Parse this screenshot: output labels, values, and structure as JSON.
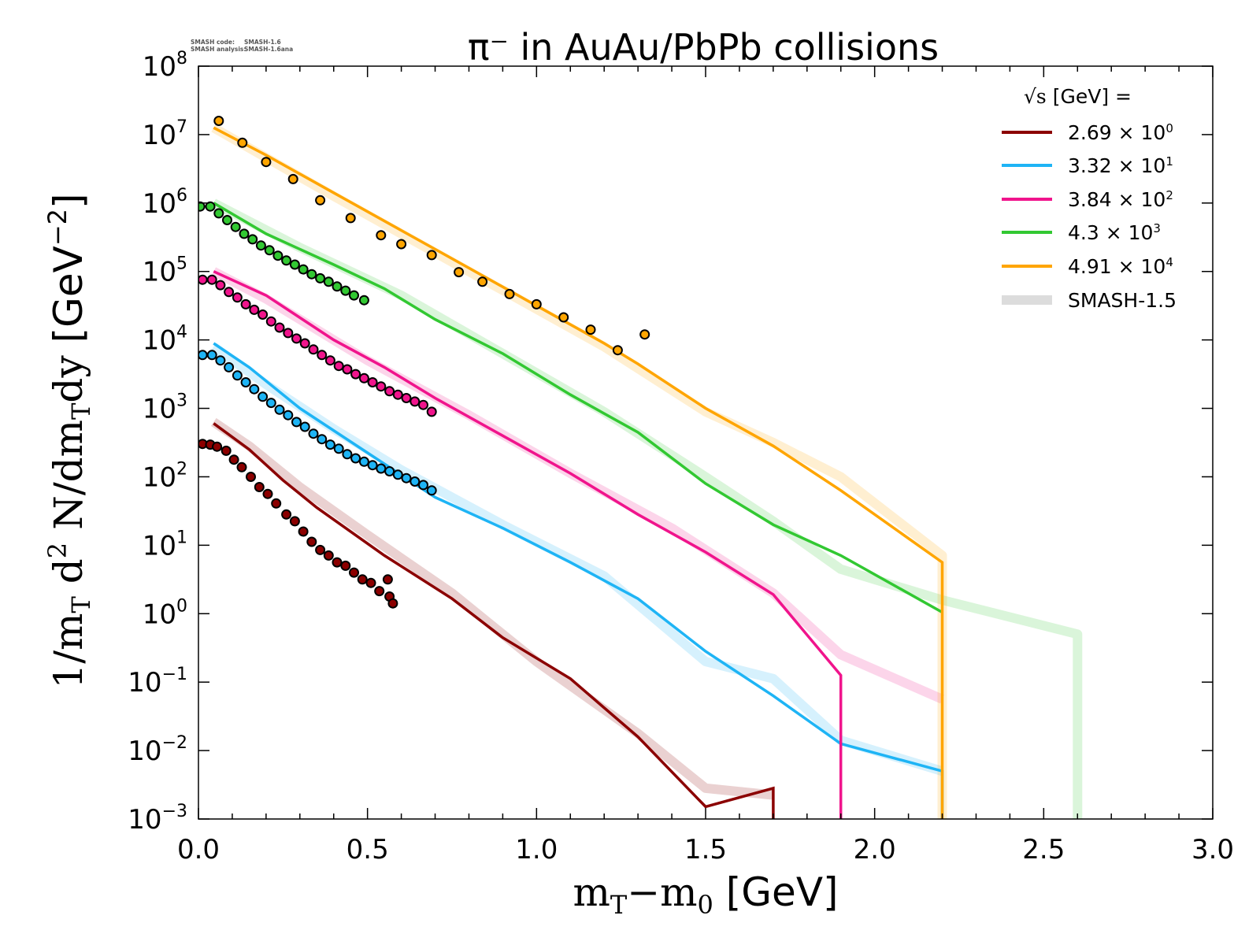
{
  "chart_data": {
    "type": "line",
    "title": "π⁻ in AuAu/PbPb collisions",
    "credits": [
      {
        "label": "SMASH code:",
        "value": "SMASH-1.6"
      },
      {
        "label": "SMASH analysis:",
        "value": "SMASH-1.6ana"
      }
    ],
    "xlabel": {
      "pre": "m",
      "sub1": "T",
      "mid": "−m",
      "sub2": "0",
      "unit": " [GeV]"
    },
    "ylabel": {
      "pre": "1/m",
      "sub1": "T",
      "d": " d",
      "sup": "2",
      "rest": " N/dm",
      "sub2": "T",
      "rest2": "dy",
      "unit": " [GeV",
      "unitsup": "−2",
      "close": "]"
    },
    "xlim": [
      0.0,
      3.0
    ],
    "ylim_log10": [
      -3,
      8
    ],
    "yscale": "log",
    "grid": false,
    "x_ticks": [
      "0.0",
      "0.5",
      "1.0",
      "1.5",
      "2.0",
      "2.5",
      "3.0"
    ],
    "y_ticks": [
      {
        "base": "10",
        "exp": "8"
      },
      {
        "base": "10",
        "exp": "7"
      },
      {
        "base": "10",
        "exp": "6"
      },
      {
        "base": "10",
        "exp": "5"
      },
      {
        "base": "10",
        "exp": "4"
      },
      {
        "base": "10",
        "exp": "3"
      },
      {
        "base": "10",
        "exp": "2"
      },
      {
        "base": "10",
        "exp": "1"
      },
      {
        "base": "10",
        "exp": "0"
      },
      {
        "base": "10",
        "exp": "−1"
      },
      {
        "base": "10",
        "exp": "−2"
      },
      {
        "base": "10",
        "exp": "−3"
      }
    ],
    "legend": {
      "placement": "top-right",
      "title": {
        "sqrt": "√s",
        "rest": " [GeV] ="
      },
      "entries": [
        {
          "mant": "2.69",
          "times": " × ",
          "base": "10",
          "exp": "0",
          "color": "#8b0000"
        },
        {
          "mant": "3.32",
          "times": " × ",
          "base": "10",
          "exp": "1",
          "color": "#1eb4f5"
        },
        {
          "mant": "3.84",
          "times": " × ",
          "base": "10",
          "exp": "2",
          "color": "#f0148c"
        },
        {
          "mant": "4.3",
          "times": " × ",
          "base": "10",
          "exp": "3",
          "color": "#32c832"
        },
        {
          "mant": "4.91",
          "times": " × ",
          "base": "10",
          "exp": "4",
          "color": "#ffa500"
        }
      ],
      "reference": {
        "label": "SMASH-1.5",
        "color": "#dcdcdc"
      }
    },
    "series": [
      {
        "energy": "2.69",
        "color": "#8b0000",
        "line": [
          [
            0.045,
            2.78
          ],
          [
            0.15,
            2.4
          ],
          [
            0.25,
            1.95
          ],
          [
            0.35,
            1.55
          ],
          [
            0.55,
            0.85
          ],
          [
            0.75,
            0.22
          ],
          [
            0.9,
            -0.35
          ],
          [
            1.1,
            -0.95
          ],
          [
            1.3,
            -1.8
          ],
          [
            1.5,
            -2.82
          ],
          [
            1.7,
            -2.55
          ],
          [
            1.7,
            -3.0
          ]
        ],
        "ref_line": [
          [
            0.045,
            2.8
          ],
          [
            0.15,
            2.45
          ],
          [
            0.3,
            1.85
          ],
          [
            0.5,
            1.15
          ],
          [
            0.75,
            0.3
          ],
          [
            1.0,
            -0.7
          ],
          [
            1.3,
            -1.75
          ],
          [
            1.5,
            -2.55
          ],
          [
            1.7,
            -2.65
          ]
        ],
        "points": [
          [
            0.012,
            2.48
          ],
          [
            0.035,
            2.47
          ],
          [
            0.055,
            2.44
          ],
          [
            0.082,
            2.38
          ],
          [
            0.105,
            2.25
          ],
          [
            0.128,
            2.14
          ],
          [
            0.155,
            2.0
          ],
          [
            0.18,
            1.85
          ],
          [
            0.205,
            1.75
          ],
          [
            0.23,
            1.61
          ],
          [
            0.26,
            1.45
          ],
          [
            0.285,
            1.35
          ],
          [
            0.31,
            1.2
          ],
          [
            0.335,
            1.05
          ],
          [
            0.36,
            0.93
          ],
          [
            0.385,
            0.85
          ],
          [
            0.41,
            0.75
          ],
          [
            0.435,
            0.7
          ],
          [
            0.46,
            0.6
          ],
          [
            0.485,
            0.5
          ],
          [
            0.51,
            0.45
          ],
          [
            0.535,
            0.33
          ],
          [
            0.565,
            0.25
          ],
          [
            0.575,
            0.15
          ],
          [
            0.56,
            0.5
          ]
        ]
      },
      {
        "energy": "3.32",
        "color": "#1eb4f5",
        "line": [
          [
            0.045,
            3.95
          ],
          [
            0.15,
            3.6
          ],
          [
            0.3,
            3.0
          ],
          [
            0.5,
            2.35
          ],
          [
            0.7,
            1.7
          ],
          [
            0.9,
            1.25
          ],
          [
            1.1,
            0.75
          ],
          [
            1.3,
            0.22
          ],
          [
            1.5,
            -0.55
          ],
          [
            1.7,
            -1.2
          ],
          [
            1.9,
            -1.9
          ],
          [
            2.2,
            -2.3
          ],
          [
            2.2,
            -3.0
          ]
        ],
        "ref_line": [
          [
            0.045,
            3.9
          ],
          [
            0.2,
            3.35
          ],
          [
            0.4,
            2.7
          ],
          [
            0.6,
            2.1
          ],
          [
            0.9,
            1.3
          ],
          [
            1.2,
            0.55
          ],
          [
            1.5,
            -0.7
          ],
          [
            1.7,
            -0.95
          ],
          [
            1.9,
            -1.85
          ],
          [
            2.2,
            -2.3
          ]
        ],
        "points": [
          [
            0.012,
            3.78
          ],
          [
            0.04,
            3.78
          ],
          [
            0.065,
            3.7
          ],
          [
            0.09,
            3.6
          ],
          [
            0.115,
            3.48
          ],
          [
            0.14,
            3.38
          ],
          [
            0.165,
            3.28
          ],
          [
            0.19,
            3.17
          ],
          [
            0.215,
            3.08
          ],
          [
            0.24,
            2.98
          ],
          [
            0.265,
            2.9
          ],
          [
            0.29,
            2.8
          ],
          [
            0.315,
            2.73
          ],
          [
            0.34,
            2.63
          ],
          [
            0.365,
            2.55
          ],
          [
            0.39,
            2.47
          ],
          [
            0.415,
            2.41
          ],
          [
            0.44,
            2.33
          ],
          [
            0.465,
            2.27
          ],
          [
            0.49,
            2.22
          ],
          [
            0.515,
            2.17
          ],
          [
            0.54,
            2.12
          ],
          [
            0.565,
            2.08
          ],
          [
            0.59,
            2.03
          ],
          [
            0.615,
            1.98
          ],
          [
            0.64,
            1.93
          ],
          [
            0.665,
            1.88
          ],
          [
            0.69,
            1.8
          ]
        ]
      },
      {
        "energy": "3.84",
        "color": "#f0148c",
        "line": [
          [
            0.045,
            5.0
          ],
          [
            0.2,
            4.65
          ],
          [
            0.4,
            4.0
          ],
          [
            0.55,
            3.6
          ],
          [
            0.7,
            3.15
          ],
          [
            0.9,
            2.6
          ],
          [
            1.1,
            2.05
          ],
          [
            1.3,
            1.45
          ],
          [
            1.5,
            0.9
          ],
          [
            1.7,
            0.28
          ],
          [
            1.9,
            -0.9
          ],
          [
            1.9,
            -3.0
          ]
        ],
        "ref_line": [
          [
            0.045,
            5.0
          ],
          [
            0.2,
            4.6
          ],
          [
            0.5,
            3.7
          ],
          [
            0.8,
            2.9
          ],
          [
            1.1,
            2.05
          ],
          [
            1.4,
            1.25
          ],
          [
            1.7,
            0.3
          ],
          [
            1.9,
            -0.6
          ],
          [
            2.2,
            -1.25
          ]
        ],
        "points": [
          [
            0.012,
            4.88
          ],
          [
            0.04,
            4.88
          ],
          [
            0.065,
            4.8
          ],
          [
            0.09,
            4.7
          ],
          [
            0.115,
            4.62
          ],
          [
            0.14,
            4.52
          ],
          [
            0.165,
            4.44
          ],
          [
            0.19,
            4.37
          ],
          [
            0.215,
            4.27
          ],
          [
            0.24,
            4.18
          ],
          [
            0.265,
            4.1
          ],
          [
            0.29,
            4.02
          ],
          [
            0.315,
            3.95
          ],
          [
            0.34,
            3.86
          ],
          [
            0.365,
            3.78
          ],
          [
            0.39,
            3.7
          ],
          [
            0.415,
            3.62
          ],
          [
            0.44,
            3.57
          ],
          [
            0.465,
            3.5
          ],
          [
            0.49,
            3.44
          ],
          [
            0.515,
            3.38
          ],
          [
            0.54,
            3.32
          ],
          [
            0.565,
            3.25
          ],
          [
            0.59,
            3.2
          ],
          [
            0.615,
            3.15
          ],
          [
            0.64,
            3.1
          ],
          [
            0.665,
            3.05
          ],
          [
            0.69,
            2.95
          ]
        ]
      },
      {
        "energy": "4.3",
        "color": "#32c832",
        "line": [
          [
            0.045,
            6.0
          ],
          [
            0.2,
            5.55
          ],
          [
            0.4,
            5.1
          ],
          [
            0.55,
            4.75
          ],
          [
            0.7,
            4.3
          ],
          [
            0.9,
            3.8
          ],
          [
            1.1,
            3.2
          ],
          [
            1.3,
            2.65
          ],
          [
            1.5,
            1.9
          ],
          [
            1.7,
            1.3
          ],
          [
            1.9,
            0.85
          ],
          [
            2.2,
            0.02
          ]
        ],
        "ref_line": [
          [
            0.045,
            6.0
          ],
          [
            0.3,
            5.35
          ],
          [
            0.6,
            4.65
          ],
          [
            0.9,
            3.8
          ],
          [
            1.2,
            2.95
          ],
          [
            1.5,
            2.0
          ],
          [
            1.7,
            1.35
          ],
          [
            1.9,
            0.65
          ],
          [
            2.2,
            0.2
          ],
          [
            2.6,
            -0.3
          ],
          [
            2.6,
            -3.0
          ]
        ],
        "points": [
          [
            0.005,
            5.95
          ],
          [
            0.035,
            5.95
          ],
          [
            0.06,
            5.85
          ],
          [
            0.085,
            5.75
          ],
          [
            0.11,
            5.65
          ],
          [
            0.135,
            5.55
          ],
          [
            0.16,
            5.47
          ],
          [
            0.185,
            5.38
          ],
          [
            0.21,
            5.31
          ],
          [
            0.235,
            5.23
          ],
          [
            0.26,
            5.16
          ],
          [
            0.285,
            5.1
          ],
          [
            0.31,
            5.03
          ],
          [
            0.335,
            4.96
          ],
          [
            0.36,
            4.9
          ],
          [
            0.385,
            4.85
          ],
          [
            0.41,
            4.78
          ],
          [
            0.435,
            4.72
          ],
          [
            0.46,
            4.65
          ],
          [
            0.49,
            4.58
          ]
        ]
      },
      {
        "energy": "4.91",
        "color": "#ffa500",
        "line": [
          [
            0.045,
            7.1
          ],
          [
            0.2,
            6.7
          ],
          [
            0.4,
            6.15
          ],
          [
            0.6,
            5.6
          ],
          [
            0.8,
            5.05
          ],
          [
            1.0,
            4.5
          ],
          [
            1.2,
            3.95
          ],
          [
            1.3,
            3.65
          ],
          [
            1.5,
            3.0
          ],
          [
            1.7,
            2.45
          ],
          [
            1.9,
            1.8
          ],
          [
            2.2,
            0.75
          ],
          [
            2.2,
            -3.0
          ]
        ],
        "ref_line": [
          [
            0.045,
            7.1
          ],
          [
            0.4,
            6.1
          ],
          [
            0.8,
            5.0
          ],
          [
            1.2,
            3.9
          ],
          [
            1.5,
            2.95
          ],
          [
            1.7,
            2.5
          ],
          [
            1.9,
            2.0
          ],
          [
            2.2,
            0.85
          ],
          [
            2.2,
            -3.0
          ]
        ],
        "points": [
          [
            0.06,
            7.2
          ],
          [
            0.13,
            6.88
          ],
          [
            0.2,
            6.6
          ],
          [
            0.28,
            6.35
          ],
          [
            0.36,
            6.04
          ],
          [
            0.45,
            5.78
          ],
          [
            0.54,
            5.53
          ],
          [
            0.6,
            5.4
          ],
          [
            0.69,
            5.24
          ],
          [
            0.77,
            4.99
          ],
          [
            0.84,
            4.85
          ],
          [
            0.92,
            4.67
          ],
          [
            1.0,
            4.52
          ],
          [
            1.08,
            4.33
          ],
          [
            1.16,
            4.15
          ],
          [
            1.24,
            3.85
          ],
          [
            1.32,
            4.08
          ]
        ]
      }
    ]
  }
}
